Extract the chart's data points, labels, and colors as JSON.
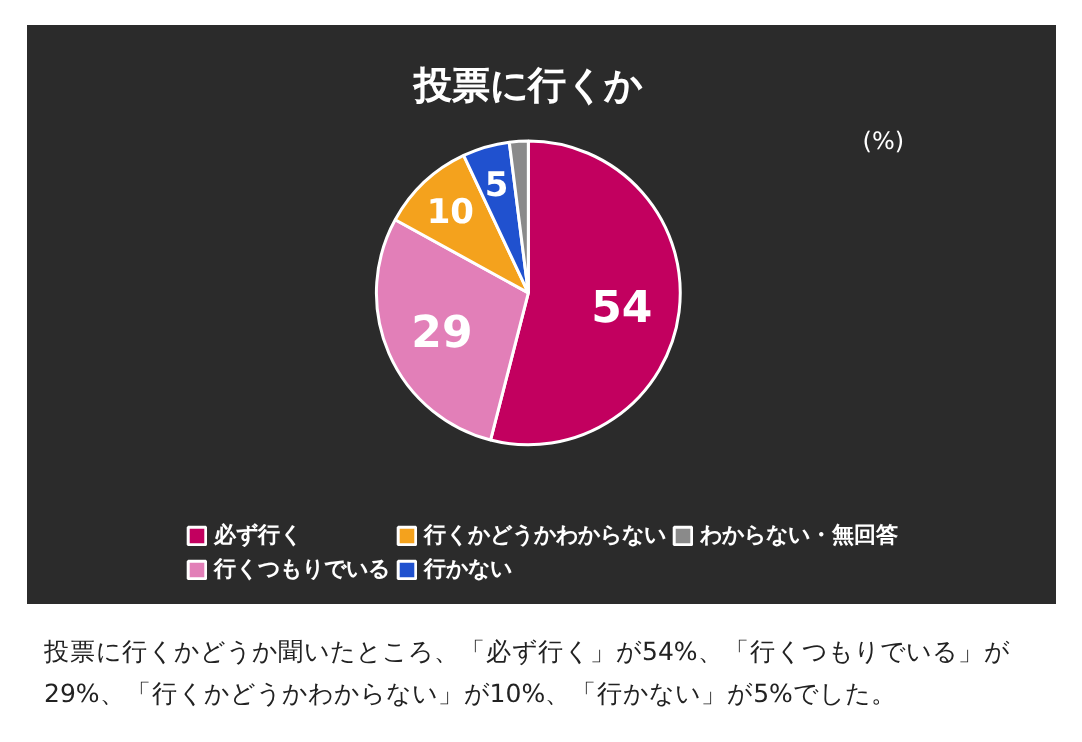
{
  "chart_data": {
    "type": "pie",
    "title": "投票に行くか",
    "categories": [
      "必ず行く",
      "行くつもりでいる",
      "行くかどうかわからない",
      "行かない",
      "わからない・無回答"
    ],
    "values": [
      54,
      29,
      10,
      5,
      2
    ],
    "value_labels": [
      "54",
      "29",
      "10",
      "5",
      null
    ],
    "colors": [
      "#c2005f",
      "#e27fb8",
      "#f4a21d",
      "#2051cf",
      "#8a8a8a"
    ],
    "legend": "bottom",
    "annotations": [
      "(%)",
      "投票に行くかどうか聞いたところ、「必ず行く」が54%、「行くつもりでいる」が29%、「行くかどうかわからない」が10%、「行かない」が5%でした。"
    ]
  }
}
